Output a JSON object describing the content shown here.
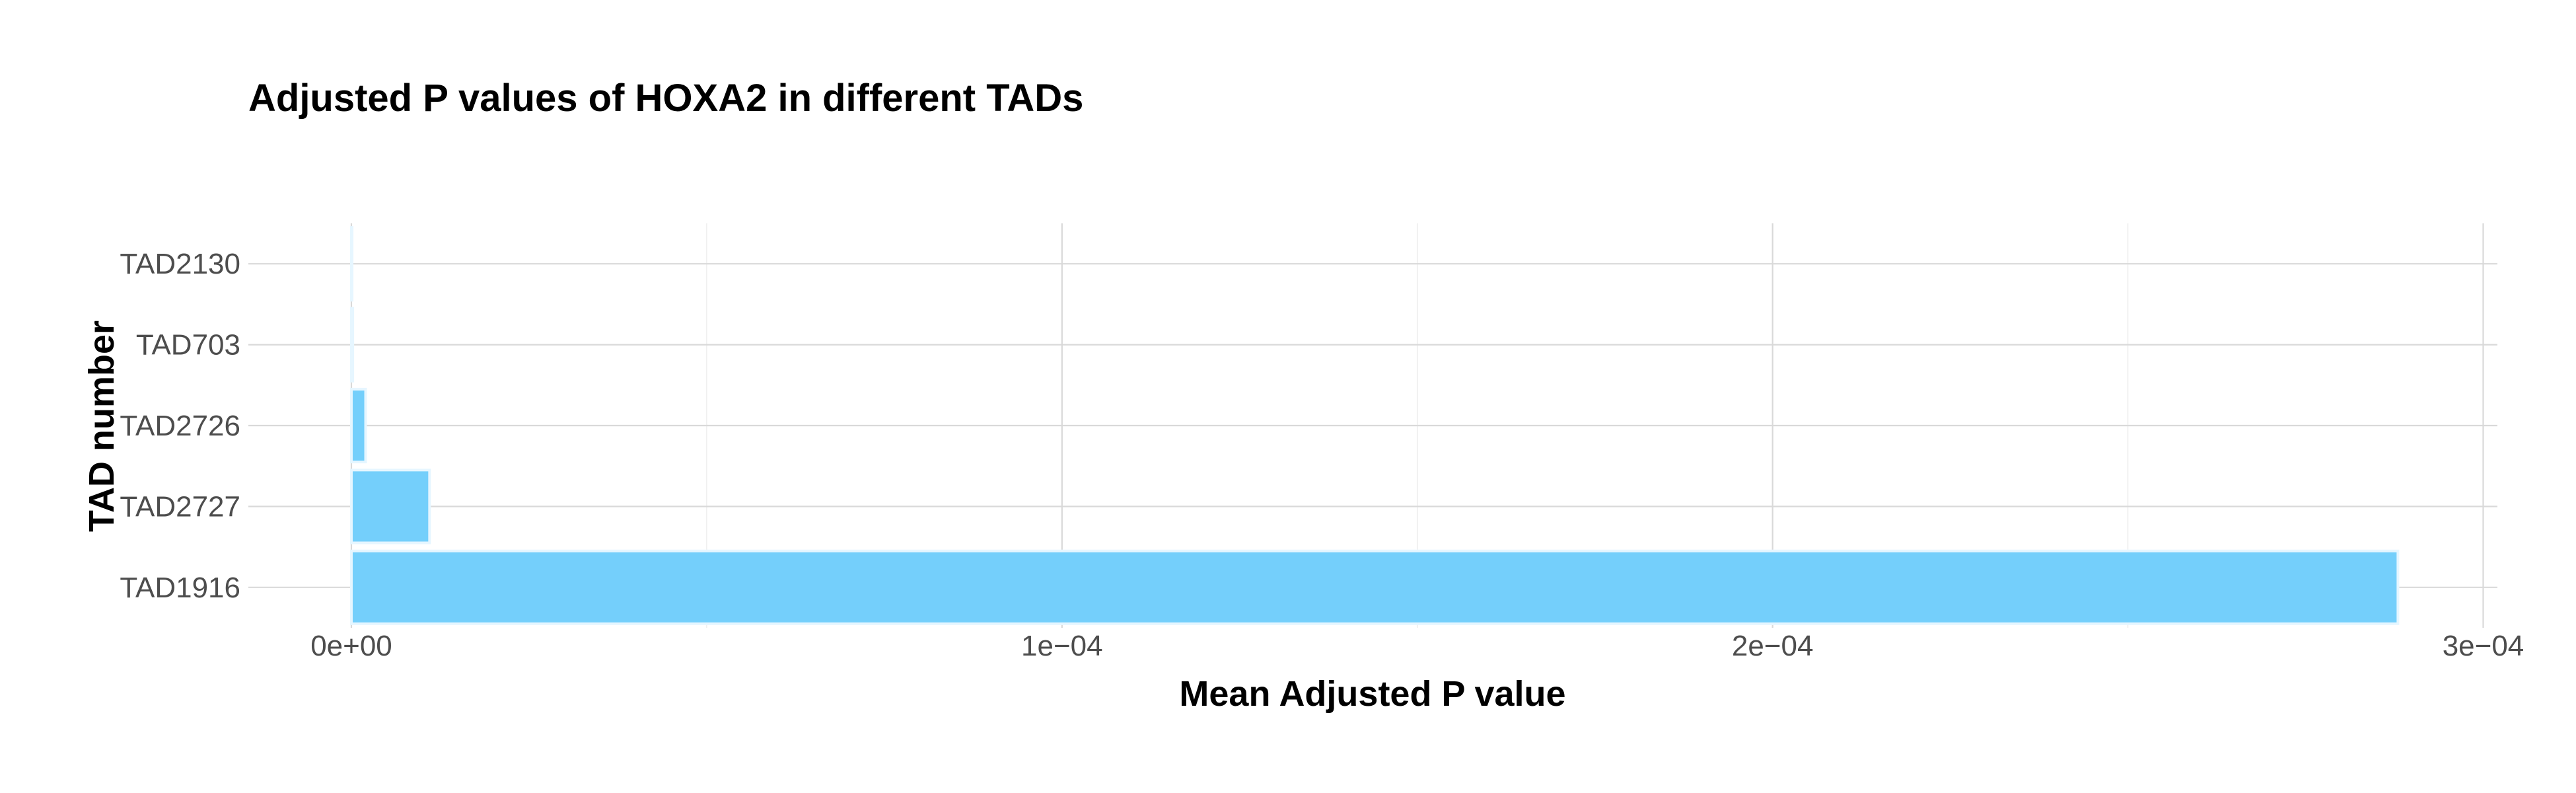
{
  "chart_data": {
    "type": "bar",
    "orientation": "horizontal",
    "title": "Adjusted P values of HOXA2 in different TADs",
    "xlabel": "Mean Adjusted P value",
    "ylabel": "TAD number",
    "categories": [
      "TAD2130",
      "TAD703",
      "TAD2726",
      "TAD2727",
      "TAD1916"
    ],
    "values": [
      1e-07,
      2e-07,
      2e-06,
      1.1e-05,
      0.000288
    ],
    "xlim": [
      -1.45e-05,
      0.000302
    ],
    "xticks": [
      0,
      0.0001,
      0.0002,
      0.0003
    ],
    "xtick_labels": [
      "0e+00",
      "1e−04",
      "2e−04",
      "3e−04"
    ],
    "bar_color": "#74CFFB",
    "bar_edge_color": "#E6F6FF",
    "grid": true,
    "legend": "none"
  }
}
